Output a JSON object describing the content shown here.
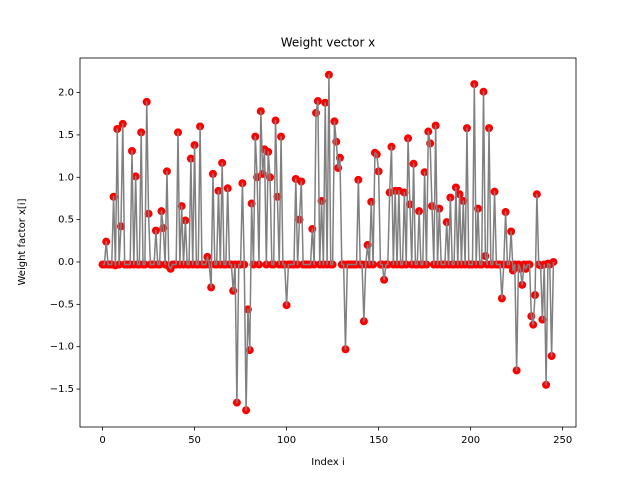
{
  "chart_data": {
    "type": "line",
    "title": "Weight vector x",
    "x_label": "Index i",
    "y_label": "Weight factor x[i]",
    "line_color": "#808080",
    "marker_color": "#ff0000",
    "markers": true,
    "x": [
      0,
      1,
      2,
      3,
      4,
      5,
      6,
      7,
      8,
      9,
      10,
      11,
      12,
      13,
      14,
      15,
      16,
      17,
      18,
      19,
      20,
      21,
      22,
      23,
      24,
      25,
      26,
      27,
      28,
      29,
      30,
      31,
      32,
      33,
      34,
      35,
      36,
      37,
      38,
      39,
      40,
      41,
      42,
      43,
      44,
      45,
      46,
      47,
      48,
      49,
      50,
      51,
      52,
      53,
      54,
      55,
      56,
      57,
      58,
      59,
      60,
      61,
      62,
      63,
      64,
      65,
      66,
      67,
      68,
      69,
      70,
      71,
      72,
      73,
      74,
      75,
      76,
      77,
      78,
      79,
      80,
      81,
      82,
      83,
      84,
      85,
      86,
      87,
      88,
      89,
      90,
      91,
      92,
      93,
      94,
      95,
      96,
      97,
      98,
      99,
      100,
      101,
      102,
      103,
      104,
      105,
      106,
      107,
      108,
      109,
      110,
      111,
      112,
      113,
      114,
      115,
      116,
      117,
      118,
      119,
      120,
      121,
      122,
      123,
      124,
      125,
      126,
      127,
      128,
      129,
      130,
      131,
      132,
      133,
      134,
      135,
      136,
      137,
      138,
      139,
      140,
      141,
      142,
      143,
      144,
      145,
      146,
      147,
      148,
      149,
      150,
      151,
      152,
      153,
      154,
      155,
      156,
      157,
      158,
      159,
      160,
      161,
      162,
      163,
      164,
      165,
      166,
      167,
      168,
      169,
      170,
      171,
      172,
      173,
      174,
      175,
      176,
      177,
      178,
      179,
      180,
      181,
      182,
      183,
      184,
      185,
      186,
      187,
      188,
      189,
      190,
      191,
      192,
      193,
      194,
      195,
      196,
      197,
      198,
      199,
      200,
      201,
      202,
      203,
      204,
      205,
      206,
      207,
      208,
      209,
      210,
      211,
      212,
      213,
      214,
      215,
      216,
      217,
      218,
      219,
      220,
      221,
      222,
      223,
      224,
      225,
      226,
      227,
      228,
      229,
      230,
      231,
      232,
      233,
      234,
      235,
      236,
      237,
      238,
      239,
      240,
      241,
      242,
      243,
      244,
      245
    ],
    "values": [
      -0.03,
      -0.03,
      0.24,
      -0.03,
      -0.03,
      -0.03,
      0.77,
      -0.04,
      1.57,
      -0.03,
      0.42,
      1.63,
      -0.03,
      -0.03,
      -0.03,
      -0.03,
      1.31,
      -0.03,
      1.01,
      -0.03,
      -0.03,
      1.53,
      -0.03,
      -0.03,
      1.89,
      0.57,
      -0.03,
      -0.03,
      -0.03,
      0.37,
      -0.03,
      -0.03,
      0.6,
      0.4,
      -0.03,
      1.07,
      -0.05,
      -0.08,
      -0.03,
      -0.03,
      -0.03,
      1.53,
      -0.03,
      0.66,
      -0.03,
      0.49,
      -0.03,
      -0.03,
      1.22,
      -0.03,
      1.38,
      -0.03,
      -0.03,
      1.6,
      -0.03,
      -0.03,
      -0.03,
      0.06,
      -0.03,
      -0.3,
      1.04,
      -0.03,
      -0.03,
      0.84,
      -0.03,
      1.17,
      -0.03,
      -0.03,
      0.87,
      -0.03,
      -0.03,
      -0.34,
      -0.03,
      -1.66,
      -0.03,
      -0.03,
      0.93,
      -0.03,
      -1.75,
      -0.56,
      -1.04,
      0.69,
      -0.03,
      1.48,
      1.0,
      -0.03,
      1.78,
      1.04,
      1.33,
      -0.03,
      1.3,
      1.0,
      -0.03,
      -0.03,
      1.67,
      0.77,
      -0.03,
      1.48,
      -0.03,
      -0.03,
      -0.51,
      -0.03,
      -0.03,
      -0.03,
      -0.03,
      0.98,
      -0.03,
      0.5,
      0.95,
      -0.03,
      -0.03,
      -0.03,
      -0.03,
      -0.03,
      0.39,
      -0.03,
      1.76,
      1.9,
      -0.03,
      0.72,
      -0.03,
      1.88,
      -0.03,
      2.21,
      -0.03,
      -0.03,
      1.66,
      1.42,
      1.11,
      1.23,
      -0.03,
      -0.03,
      -1.03,
      -0.03,
      -0.03,
      -0.03,
      -0.03,
      -0.03,
      -0.03,
      0.97,
      -0.03,
      -0.03,
      -0.7,
      -0.03,
      0.2,
      -0.03,
      0.71,
      -0.03,
      1.29,
      1.27,
      1.07,
      -0.03,
      -0.03,
      -0.21,
      -0.03,
      -0.03,
      0.82,
      1.36,
      -0.03,
      0.84,
      -0.03,
      0.84,
      -0.03,
      -0.03,
      0.82,
      -0.03,
      1.46,
      0.68,
      -0.03,
      1.16,
      -0.03,
      -0.03,
      0.6,
      -0.03,
      -0.03,
      1.06,
      -0.03,
      1.54,
      1.4,
      0.66,
      -0.03,
      1.61,
      -0.03,
      0.63,
      -0.03,
      -0.03,
      -0.03,
      0.47,
      -0.03,
      0.76,
      -0.03,
      -0.03,
      0.88,
      -0.03,
      0.8,
      -0.03,
      0.72,
      -0.03,
      1.58,
      -0.03,
      -0.03,
      -0.03,
      2.1,
      -0.03,
      0.63,
      -0.03,
      -0.03,
      2.01,
      0.07,
      -0.03,
      1.58,
      -0.03,
      -0.03,
      0.83,
      -0.03,
      -0.03,
      -0.03,
      -0.43,
      -0.03,
      0.59,
      -0.03,
      -0.03,
      0.36,
      -0.1,
      -0.03,
      -1.28,
      -0.03,
      -0.08,
      -0.27,
      -0.03,
      -0.08,
      -0.03,
      -0.03,
      -0.64,
      -0.74,
      -0.39,
      0.8,
      -0.03,
      -0.04,
      -0.68,
      -0.03,
      -1.45,
      -0.02,
      -0.03,
      -1.11,
      0.0
    ],
    "xlim": [
      -12.25,
      257.25
    ],
    "xticks": [
      0,
      50,
      100,
      150,
      200,
      250
    ],
    "ylim": [
      -1.948,
      2.408
    ],
    "yticks": [
      {
        "value": -1.5,
        "label": "−1.5"
      },
      {
        "value": -1.0,
        "label": "−1.0"
      },
      {
        "value": -0.5,
        "label": "−0.5"
      },
      {
        "value": 0.0,
        "label": "0.0"
      },
      {
        "value": 0.5,
        "label": "0.5"
      },
      {
        "value": 1.0,
        "label": "1.0"
      },
      {
        "value": 1.5,
        "label": "1.5"
      },
      {
        "value": 2.0,
        "label": "2.0"
      }
    ]
  }
}
